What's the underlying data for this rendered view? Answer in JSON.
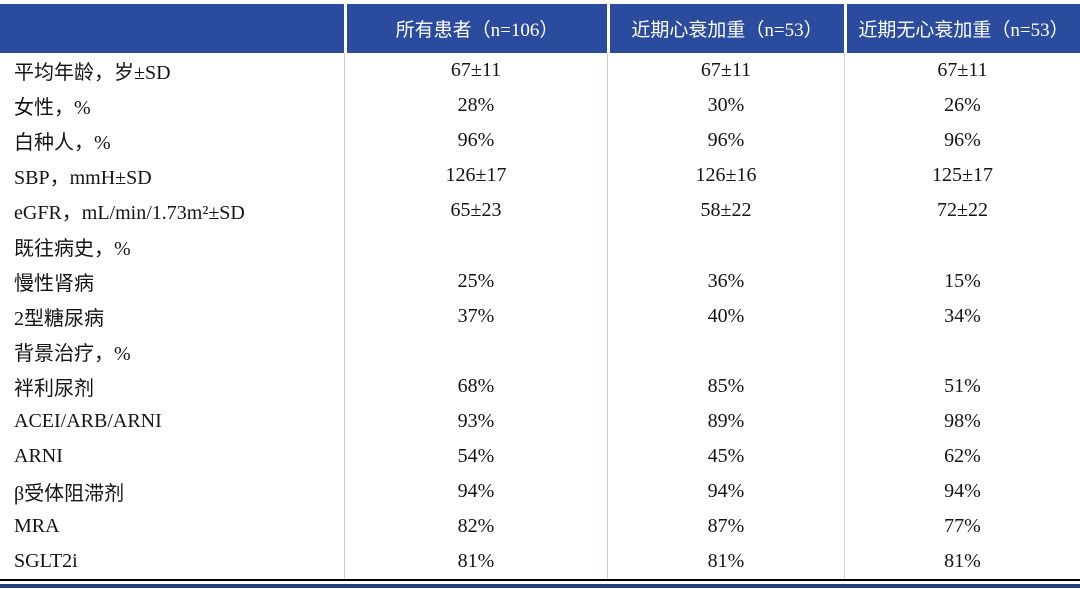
{
  "colors": {
    "header_bg": "#2b4c9e",
    "header_text": "#ffffff",
    "body_text": "#141414",
    "column_divider": "#c9cfdf",
    "bottom_rule": "#000000",
    "accent_bar": "#24407e"
  },
  "table": {
    "columns": [
      "所有患者（n=106）",
      "近期心衰加重（n=53）",
      "近期无心衰加重（n=53）"
    ],
    "rows": [
      {
        "label": "平均年龄，岁±SD",
        "values": [
          "67±11",
          "67±11",
          "67±11"
        ]
      },
      {
        "label": "女性，%",
        "values": [
          "28%",
          "30%",
          "26%"
        ]
      },
      {
        "label": "白种人，%",
        "values": [
          "96%",
          "96%",
          "96%"
        ]
      },
      {
        "label": "SBP，mmH±SD",
        "values": [
          "126±17",
          "126±16",
          "125±17"
        ]
      },
      {
        "label": "eGFR，mL/min/1.73m²±SD",
        "values": [
          "65±23",
          "58±22",
          "72±22"
        ]
      },
      {
        "label": "既往病史，%",
        "values": [
          "",
          "",
          ""
        ]
      },
      {
        "label": "慢性肾病",
        "values": [
          "25%",
          "36%",
          "15%"
        ]
      },
      {
        "label": "2型糖尿病",
        "values": [
          "37%",
          "40%",
          "34%"
        ]
      },
      {
        "label": "背景治疗，%",
        "values": [
          "",
          "",
          ""
        ]
      },
      {
        "label": "袢利尿剂",
        "values": [
          "68%",
          "85%",
          "51%"
        ]
      },
      {
        "label": "ACEI/ARB/ARNI",
        "values": [
          "93%",
          "89%",
          "98%"
        ]
      },
      {
        "label": "ARNI",
        "values": [
          "54%",
          "45%",
          "62%"
        ]
      },
      {
        "label": "β受体阻滞剂",
        "values": [
          "94%",
          "94%",
          "94%"
        ]
      },
      {
        "label": "MRA",
        "values": [
          "82%",
          "87%",
          "77%"
        ]
      },
      {
        "label": "SGLT2i",
        "values": [
          "81%",
          "81%",
          "81%"
        ]
      }
    ]
  }
}
